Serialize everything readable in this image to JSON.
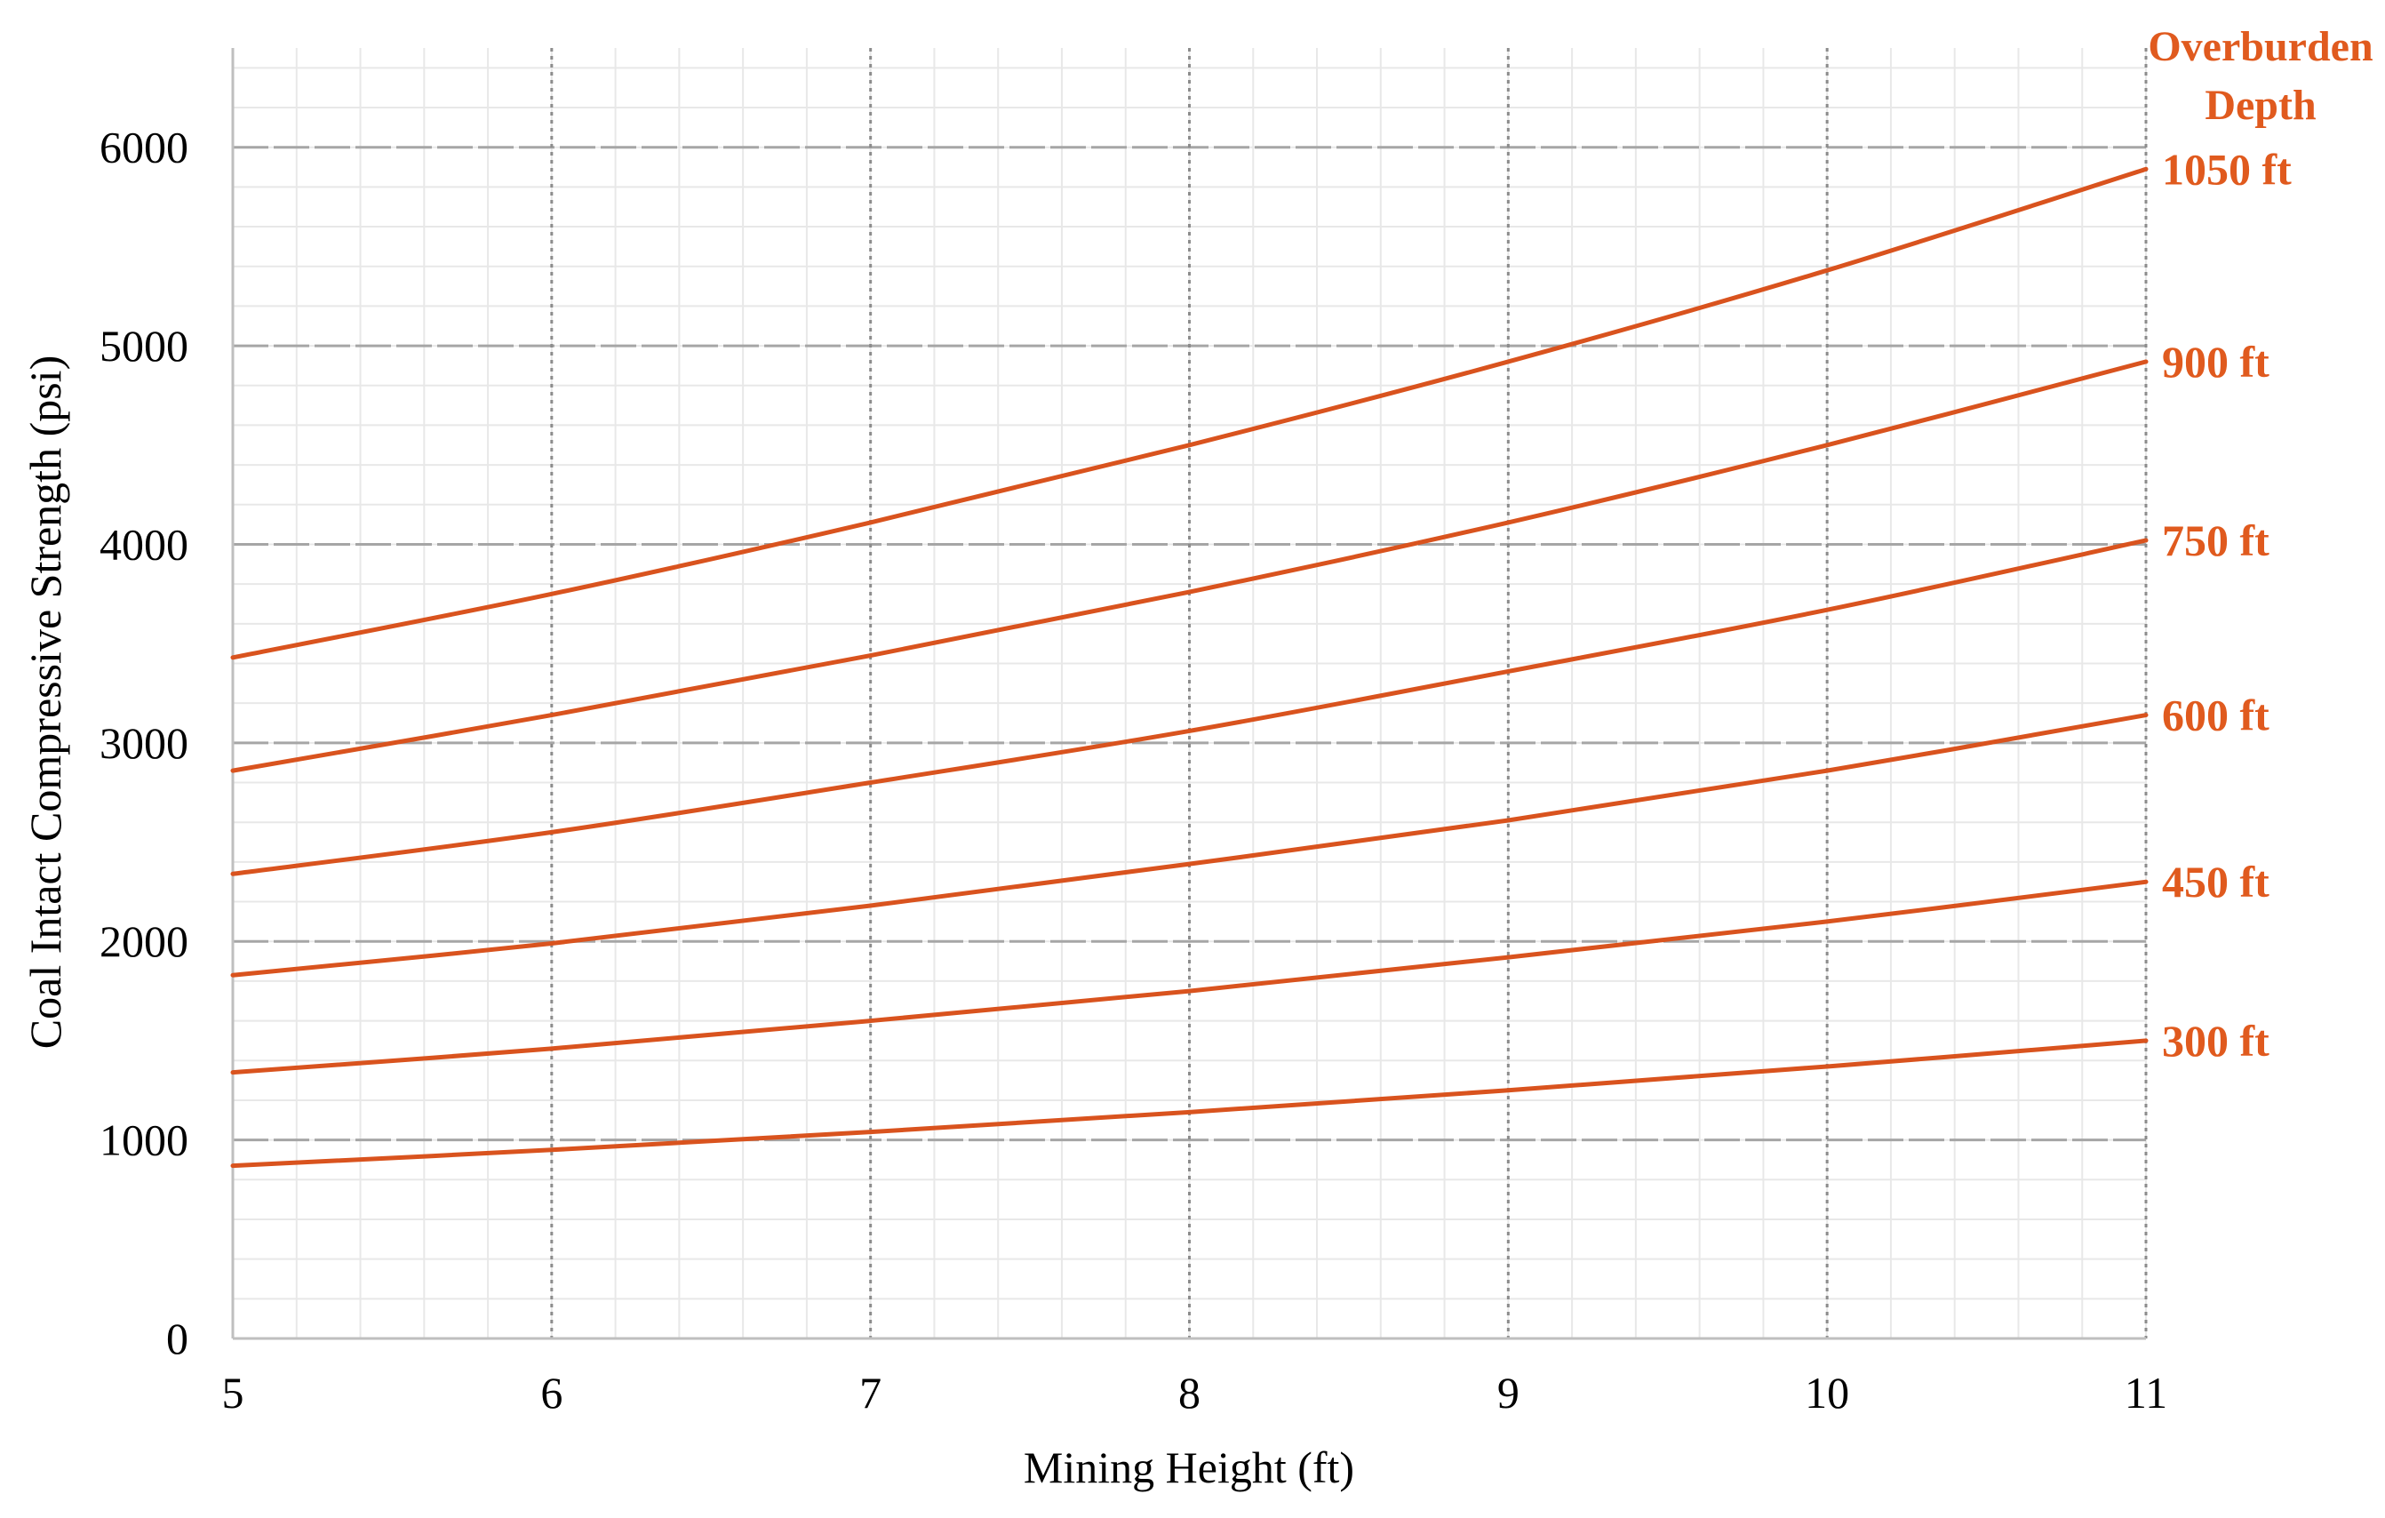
{
  "chart_data": {
    "type": "line",
    "title": "",
    "xlabel": "Mining Height (ft)",
    "ylabel": "Coal Intact Compressive Strength (psi)",
    "xlim": [
      5,
      11
    ],
    "ylim": [
      0,
      6500
    ],
    "x_ticks": [
      5,
      6,
      7,
      8,
      9,
      10,
      11
    ],
    "y_ticks": [
      0,
      1000,
      2000,
      3000,
      4000,
      5000,
      6000
    ],
    "grid": true,
    "legend_title": [
      "Overburden",
      "Depth"
    ],
    "x": [
      5,
      6,
      7,
      8,
      9,
      10,
      11
    ],
    "series": [
      {
        "name": "1050 ft",
        "values": [
          3430,
          3750,
          4110,
          4500,
          4920,
          5380,
          5890
        ]
      },
      {
        "name": "900 ft",
        "values": [
          2860,
          3140,
          3440,
          3760,
          4110,
          4500,
          4920
        ]
      },
      {
        "name": "750 ft",
        "values": [
          2340,
          2550,
          2800,
          3060,
          3360,
          3670,
          4020
        ]
      },
      {
        "name": "600 ft",
        "values": [
          1830,
          1990,
          2180,
          2390,
          2610,
          2860,
          3140
        ]
      },
      {
        "name": "450 ft",
        "values": [
          1340,
          1460,
          1600,
          1750,
          1920,
          2100,
          2300
        ]
      },
      {
        "name": "300 ft",
        "values": [
          870,
          950,
          1040,
          1140,
          1250,
          1370,
          1500
        ]
      }
    ],
    "colors": {
      "series": "#d9531e",
      "label": "#e05a1e",
      "major_grid": "#a6a6a6",
      "minor_grid": "#e8e8e8",
      "vertical_grid": "#8c8c8c",
      "axis": "#bfbfbf",
      "text": "#000000"
    }
  }
}
